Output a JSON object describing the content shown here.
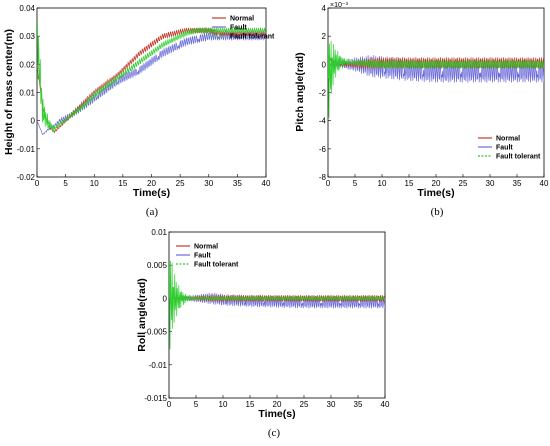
{
  "colors": {
    "normal": "#c0392b",
    "fault": "#6a6ad9",
    "fault_tolerant": "#2ecc2e"
  },
  "chart_data": [
    {
      "type": "line",
      "caption": "(a)",
      "xlabel": "Time(s)",
      "ylabel": "Height of mass center(m)",
      "xlim": [
        0,
        40
      ],
      "ylim": [
        -0.02,
        0.04
      ],
      "xticks": [
        "0",
        "5",
        "10",
        "15",
        "20",
        "25",
        "30",
        "35",
        "40"
      ],
      "yticks": [
        "-0.02",
        "-0.01",
        "0",
        "0.01",
        "0.02",
        "0.03",
        "0.04"
      ],
      "legend": [
        "Normal",
        "Fault",
        "Fault tolerant"
      ],
      "legend_position": "top-right",
      "series": [
        {
          "name": "Normal",
          "color": "normal",
          "x": [
            0,
            1,
            2,
            3,
            4,
            5,
            6,
            8,
            10,
            12,
            14,
            16,
            18,
            20,
            22,
            24,
            26,
            28,
            30,
            32,
            34,
            36,
            38,
            40
          ],
          "y": [
            0.02,
            0.005,
            -0.002,
            -0.004,
            -0.002,
            0.0,
            0.002,
            0.006,
            0.01,
            0.013,
            0.016,
            0.02,
            0.024,
            0.027,
            0.03,
            0.031,
            0.032,
            0.032,
            0.032,
            0.031,
            0.031,
            0.031,
            0.031,
            0.031
          ],
          "oscillation": [
            0,
            0.001
          ]
        },
        {
          "name": "Fault",
          "color": "fault",
          "x": [
            0,
            1,
            2,
            3,
            4,
            5,
            6,
            8,
            10,
            12,
            14,
            16,
            18,
            20,
            22,
            24,
            26,
            28,
            30,
            32,
            34,
            36,
            38,
            40
          ],
          "y": [
            0.0,
            -0.005,
            -0.003,
            -0.002,
            0.0,
            0.001,
            0.002,
            0.005,
            0.008,
            0.011,
            0.014,
            0.016,
            0.018,
            0.021,
            0.024,
            0.026,
            0.028,
            0.029,
            0.03,
            0.03,
            0.03,
            0.03,
            0.03,
            0.03
          ],
          "oscillation": [
            0,
            0.0015
          ]
        },
        {
          "name": "Fault tolerant",
          "color": "fault_tolerant",
          "x": [
            0,
            1,
            2,
            3,
            4,
            5,
            6,
            8,
            10,
            12,
            14,
            16,
            18,
            20,
            22,
            24,
            26,
            28,
            30,
            32,
            34,
            36,
            38,
            40
          ],
          "y": [
            0.03,
            0.003,
            -0.001,
            -0.003,
            -0.001,
            0.0,
            0.002,
            0.005,
            0.009,
            0.012,
            0.015,
            0.018,
            0.021,
            0.024,
            0.027,
            0.029,
            0.031,
            0.032,
            0.032,
            0.032,
            0.032,
            0.032,
            0.032,
            0.032
          ],
          "oscillation": [
            0.012,
            0.001
          ]
        }
      ]
    },
    {
      "type": "line",
      "caption": "(b)",
      "xlabel": "Time(s)",
      "ylabel": "Pitch angle(rad)",
      "exponent": "×10⁻³",
      "xlim": [
        0,
        40
      ],
      "ylim": [
        -8,
        4
      ],
      "xticks": [
        "0",
        "5",
        "10",
        "15",
        "20",
        "25",
        "30",
        "35",
        "40"
      ],
      "yticks": [
        "-8",
        "-6",
        "-4",
        "-2",
        "0",
        "2",
        "4"
      ],
      "legend": [
        "Normal",
        "Fault",
        "Fault tolerant"
      ],
      "legend_position": "bottom-right",
      "series": [
        {
          "name": "Normal",
          "color": "normal",
          "x": [
            0,
            1,
            2,
            5,
            10,
            15,
            20,
            25,
            30,
            35,
            40
          ],
          "y": [
            0.5,
            0.2,
            0.0,
            0.0,
            0.1,
            0.1,
            0.1,
            0.1,
            0.1,
            0.1,
            0.1
          ],
          "oscillation": [
            0.3,
            0.4
          ]
        },
        {
          "name": "Fault",
          "color": "fault",
          "x": [
            0,
            1,
            2,
            5,
            10,
            15,
            20,
            25,
            30,
            35,
            40
          ],
          "y": [
            0.0,
            0.0,
            0.0,
            0.0,
            -0.2,
            -0.4,
            -0.5,
            -0.5,
            -0.5,
            -0.5,
            -0.5
          ],
          "oscillation": [
            0.2,
            0.8
          ]
        },
        {
          "name": "Fault tolerant",
          "color": "fault_tolerant",
          "x": [
            0,
            1,
            2,
            5,
            10,
            15,
            20,
            25,
            30,
            35,
            40
          ],
          "y": [
            -1.0,
            0.0,
            0.2,
            0.1,
            0.0,
            0.0,
            0.0,
            0.0,
            0.0,
            0.0,
            0.0
          ],
          "oscillation": [
            3.5,
            0.3
          ]
        }
      ]
    },
    {
      "type": "line",
      "caption": "(c)",
      "xlabel": "Time(s)",
      "ylabel": "Roll angle(rad)",
      "xlim": [
        0,
        40
      ],
      "ylim": [
        -0.015,
        0.01
      ],
      "xticks": [
        "0",
        "5",
        "10",
        "15",
        "20",
        "25",
        "30",
        "35",
        "40"
      ],
      "yticks": [
        "-0.015",
        "-0.01",
        "-0.005",
        "0",
        "0.005",
        "0.01"
      ],
      "legend": [
        "Normal",
        "Fault",
        "Fault tolerant"
      ],
      "legend_position": "top-left",
      "series": [
        {
          "name": "Normal",
          "color": "normal",
          "x": [
            0,
            2,
            5,
            8,
            10,
            15,
            20,
            25,
            30,
            35,
            40
          ],
          "y": [
            0,
            0,
            0,
            0,
            0,
            0,
            0,
            0,
            0,
            0,
            0
          ],
          "oscillation": [
            0.0002,
            0.0005
          ]
        },
        {
          "name": "Fault",
          "color": "fault",
          "x": [
            0,
            2,
            5,
            8,
            10,
            15,
            20,
            25,
            30,
            35,
            40
          ],
          "y": [
            0,
            0,
            0,
            0,
            -0.0002,
            -0.0004,
            -0.0005,
            -0.0006,
            -0.0006,
            -0.0006,
            -0.0006
          ],
          "oscillation": [
            0.0002,
            0.0009
          ]
        },
        {
          "name": "Fault tolerant",
          "color": "fault_tolerant",
          "x": [
            0,
            2,
            5,
            8,
            10,
            15,
            20,
            25,
            30,
            35,
            40
          ],
          "y": [
            0,
            0,
            0,
            0,
            0,
            0,
            0,
            0,
            0,
            0,
            0
          ],
          "oscillation": [
            0.009,
            0.0003
          ]
        }
      ]
    }
  ]
}
